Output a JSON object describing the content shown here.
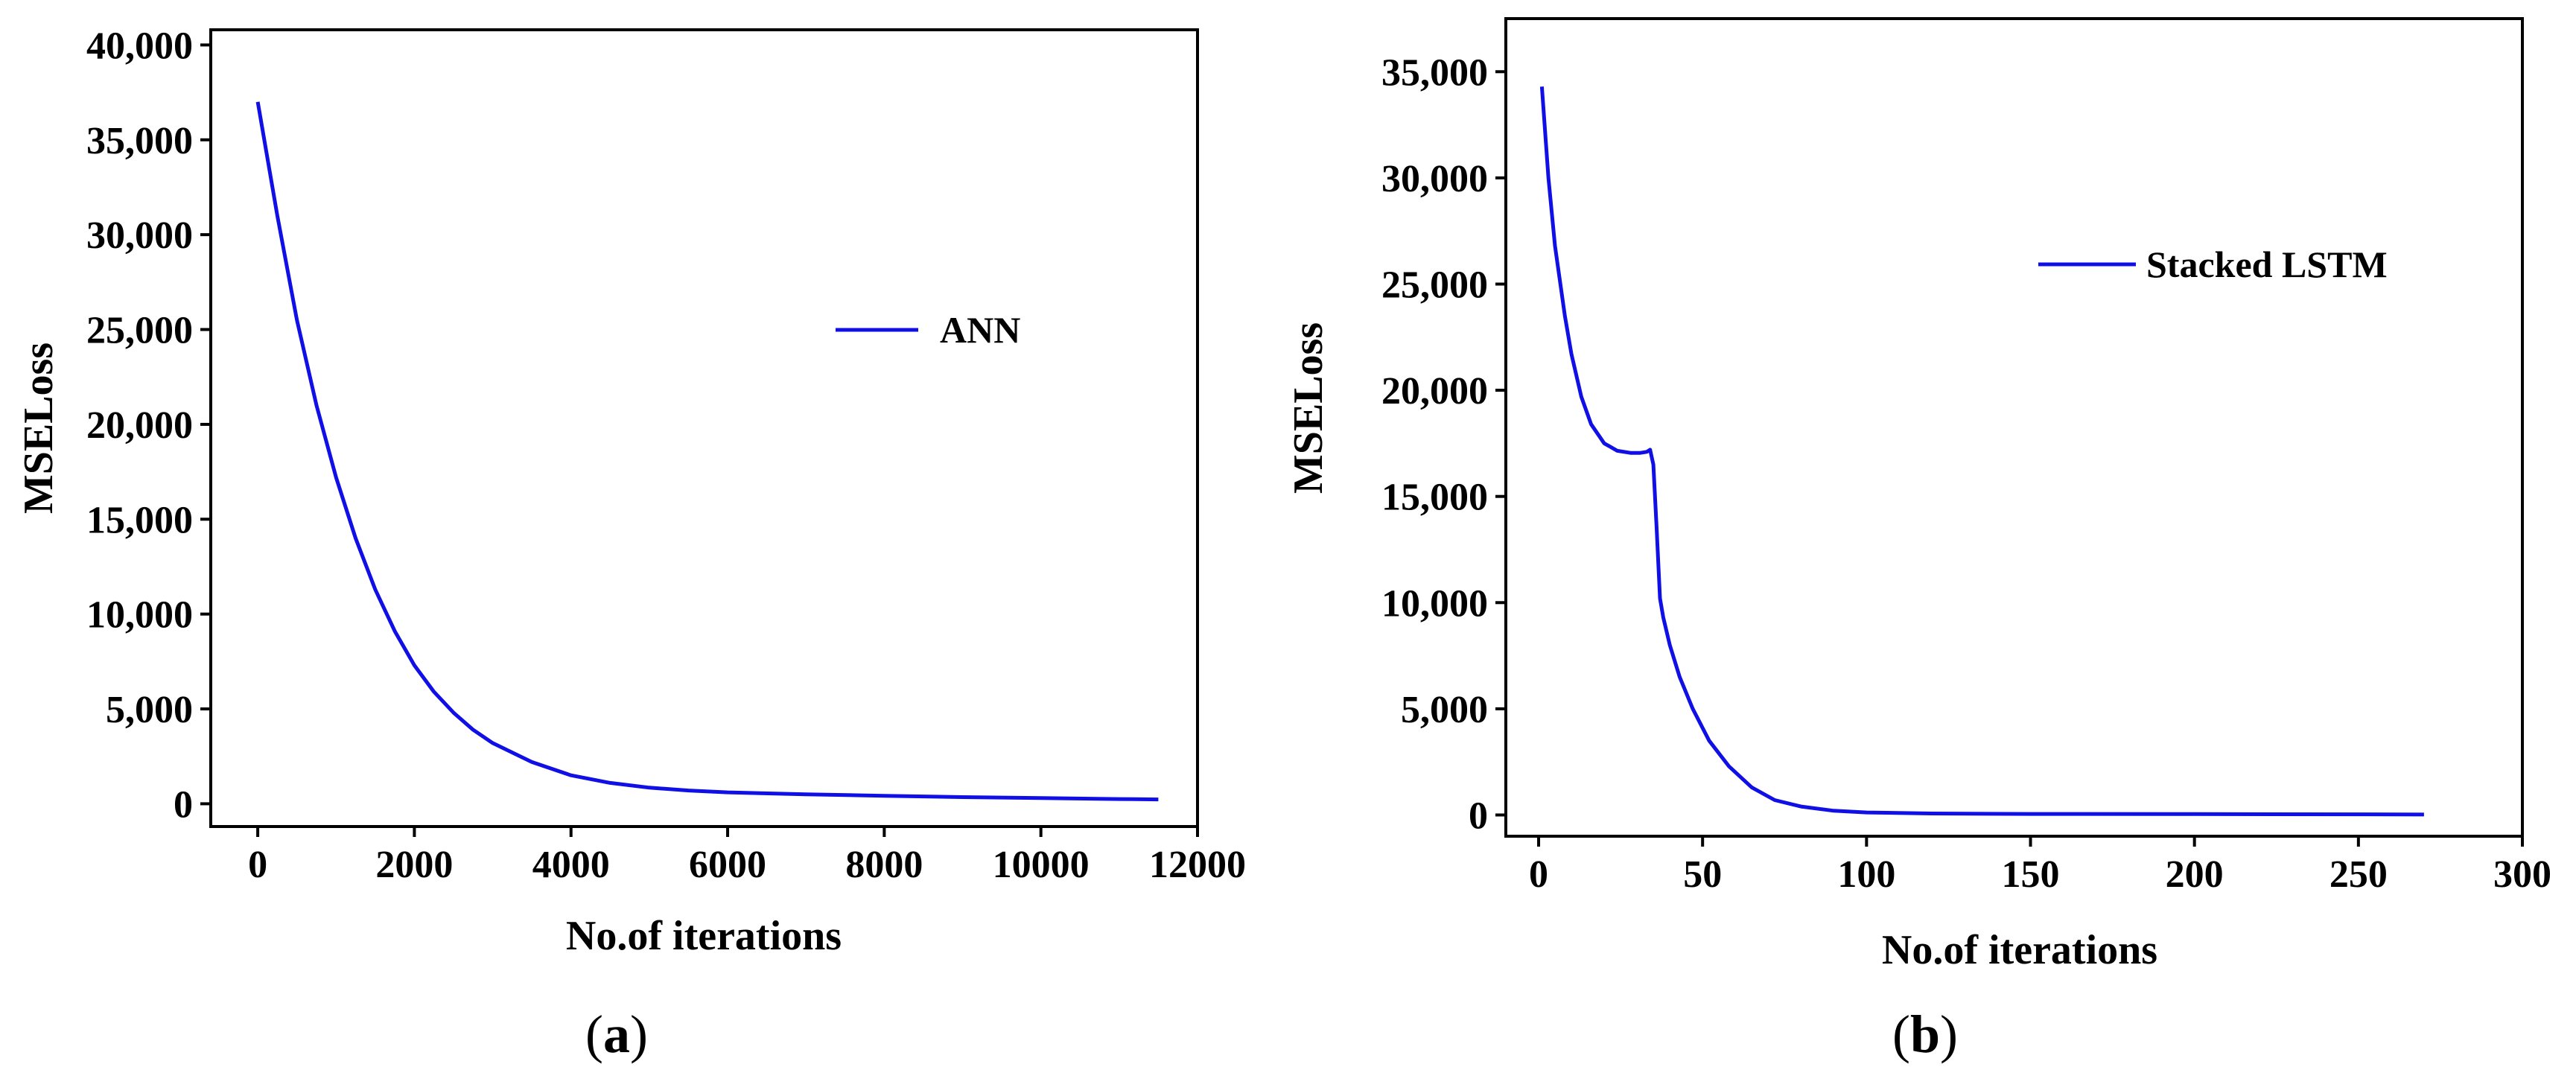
{
  "figure": {
    "caption_open": "(",
    "caption_close": ")"
  },
  "chart_data": [
    {
      "type": "line",
      "panel": "a",
      "xlabel": "No.of iterations",
      "ylabel": "MSELoss",
      "xlim": [
        -600,
        12000
      ],
      "ylim": [
        -1200,
        40800
      ],
      "xticks": [
        0,
        2000,
        4000,
        6000,
        8000,
        10000,
        12000
      ],
      "xtick_labels": [
        "0",
        "2000",
        "4000",
        "6000",
        "8000",
        "10000",
        "12000"
      ],
      "yticks": [
        0,
        5000,
        10000,
        15000,
        20000,
        25000,
        30000,
        35000,
        40000
      ],
      "ytick_labels": [
        "0",
        "5,000",
        "10,000",
        "15,000",
        "20,000",
        "25,000",
        "30,000",
        "35,000",
        "40,000"
      ],
      "grid": false,
      "legend_position": "center-right",
      "color": "#1010e6",
      "series": [
        {
          "name": "ANN",
          "x": [
            0,
            250,
            500,
            750,
            1000,
            1250,
            1500,
            1750,
            2000,
            2250,
            2500,
            2750,
            3000,
            3500,
            4000,
            4500,
            5000,
            5500,
            6000,
            7000,
            8000,
            9000,
            10000,
            11000,
            11500
          ],
          "y": [
            37000,
            31000,
            25500,
            21000,
            17200,
            14000,
            11300,
            9100,
            7300,
            5900,
            4800,
            3900,
            3200,
            2200,
            1500,
            1100,
            850,
            700,
            600,
            500,
            420,
            350,
            300,
            250,
            230
          ]
        }
      ]
    },
    {
      "type": "line",
      "panel": "b",
      "xlabel": "No.of iterations",
      "ylabel": "MSELoss",
      "xlim": [
        -10,
        300
      ],
      "ylim": [
        -1000,
        37500
      ],
      "xticks": [
        0,
        50,
        100,
        150,
        200,
        250,
        300
      ],
      "xtick_labels": [
        "0",
        "50",
        "100",
        "150",
        "200",
        "250",
        "300"
      ],
      "yticks": [
        0,
        5000,
        10000,
        15000,
        20000,
        25000,
        30000,
        35000
      ],
      "ytick_labels": [
        "0",
        "5,000",
        "10,000",
        "15,000",
        "20,000",
        "25,000",
        "30,000",
        "35,000"
      ],
      "grid": false,
      "legend_position": "upper-right",
      "color": "#1010e6",
      "series": [
        {
          "name": "Stacked LSTM",
          "x": [
            1,
            3,
            5,
            8,
            10,
            13,
            16,
            20,
            24,
            28,
            31,
            33,
            34,
            35,
            36,
            37,
            38,
            40,
            43,
            47,
            52,
            58,
            65,
            72,
            80,
            90,
            100,
            120,
            150,
            200,
            250,
            270
          ],
          "y": [
            34300,
            30000,
            26800,
            23500,
            21700,
            19700,
            18400,
            17500,
            17150,
            17050,
            17050,
            17100,
            17200,
            16500,
            13500,
            10200,
            9300,
            8000,
            6500,
            5000,
            3500,
            2300,
            1300,
            700,
            400,
            200,
            120,
            70,
            50,
            40,
            30,
            20
          ]
        }
      ]
    }
  ]
}
